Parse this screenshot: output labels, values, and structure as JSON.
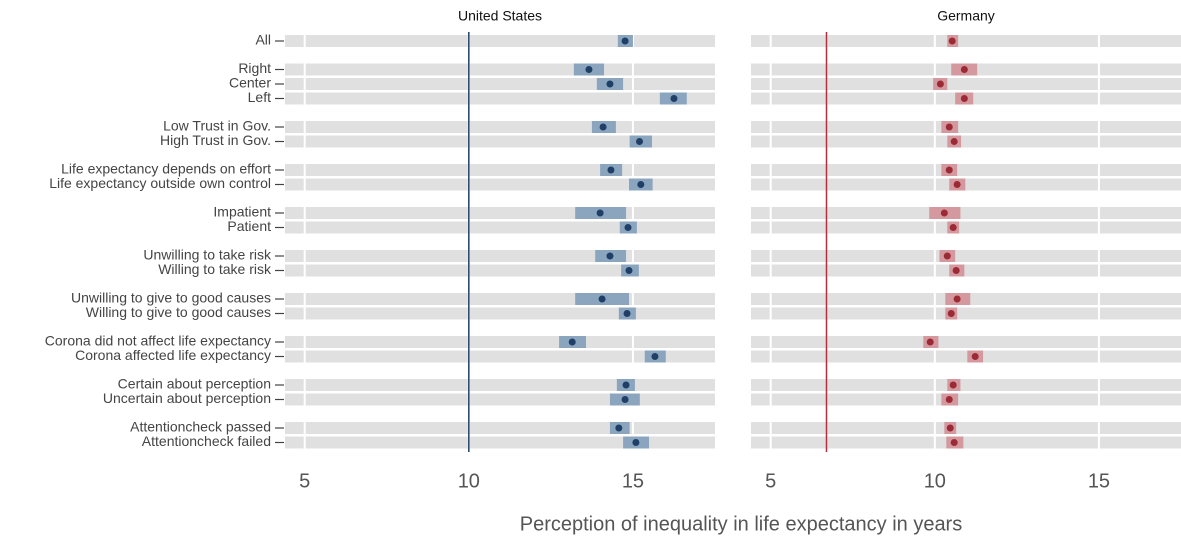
{
  "chart_data": {
    "type": "dot",
    "x_label": "Perception of inequality in life expectancy in years",
    "xlim": [
      4.4,
      17.5
    ],
    "xticks": [
      5,
      10,
      15
    ],
    "categories": [
      "All",
      "Right",
      "Center",
      "Left",
      "Low Trust in Gov.",
      "High Trust in Gov.",
      "Life expectancy depends on effort",
      "Life expectancy outside own control",
      "Impatient",
      "Patient",
      "Unwilling to take risk",
      "Willing to take risk",
      "Unwilling to give to good causes",
      "Willing to give to good causes",
      "Corona did not affect life expectancy",
      "Corona affected life expectancy",
      "Certain about perception",
      "Uncertain about perception",
      "Attentioncheck passed",
      "Attentioncheck failed"
    ],
    "panels": [
      {
        "title": "United States",
        "color": "#1f3f66",
        "interval_color": "#8ba5bf",
        "line_color": "#1f3f66",
        "reference": 10.0,
        "values": [
          14.76,
          13.66,
          14.3,
          16.25,
          14.09,
          15.2,
          14.33,
          15.24,
          14.0,
          14.85,
          14.3,
          14.88,
          14.06,
          14.82,
          13.15,
          15.67,
          14.79,
          14.76,
          14.57,
          15.09
        ],
        "lower": [
          14.54,
          13.2,
          13.9,
          15.82,
          13.75,
          14.9,
          14.0,
          14.88,
          13.24,
          14.6,
          13.85,
          14.64,
          13.24,
          14.57,
          12.75,
          15.36,
          14.51,
          14.3,
          14.3,
          14.7
        ],
        "upper": [
          15.0,
          14.12,
          14.7,
          16.64,
          14.48,
          15.58,
          14.67,
          15.6,
          14.79,
          15.12,
          14.79,
          15.18,
          14.88,
          15.09,
          13.57,
          16.0,
          15.06,
          15.21,
          14.9,
          15.49
        ]
      },
      {
        "title": "Germany",
        "color": "#9b2a35",
        "interval_color": "#d4999e",
        "line_color": "#b03040",
        "reference": 6.7,
        "values": [
          10.53,
          10.9,
          10.17,
          10.9,
          10.44,
          10.59,
          10.44,
          10.68,
          10.29,
          10.56,
          10.38,
          10.65,
          10.68,
          10.5,
          9.86,
          11.23,
          10.56,
          10.44,
          10.47,
          10.59
        ],
        "lower": [
          10.38,
          10.5,
          9.95,
          10.62,
          10.2,
          10.38,
          10.2,
          10.44,
          9.83,
          10.38,
          10.14,
          10.44,
          10.32,
          10.32,
          9.65,
          10.99,
          10.38,
          10.2,
          10.29,
          10.35
        ],
        "upper": [
          10.71,
          11.29,
          10.38,
          11.17,
          10.71,
          10.8,
          10.68,
          10.93,
          10.78,
          10.74,
          10.62,
          10.9,
          11.08,
          10.68,
          10.11,
          11.47,
          10.78,
          10.71,
          10.65,
          10.87
        ]
      }
    ]
  }
}
